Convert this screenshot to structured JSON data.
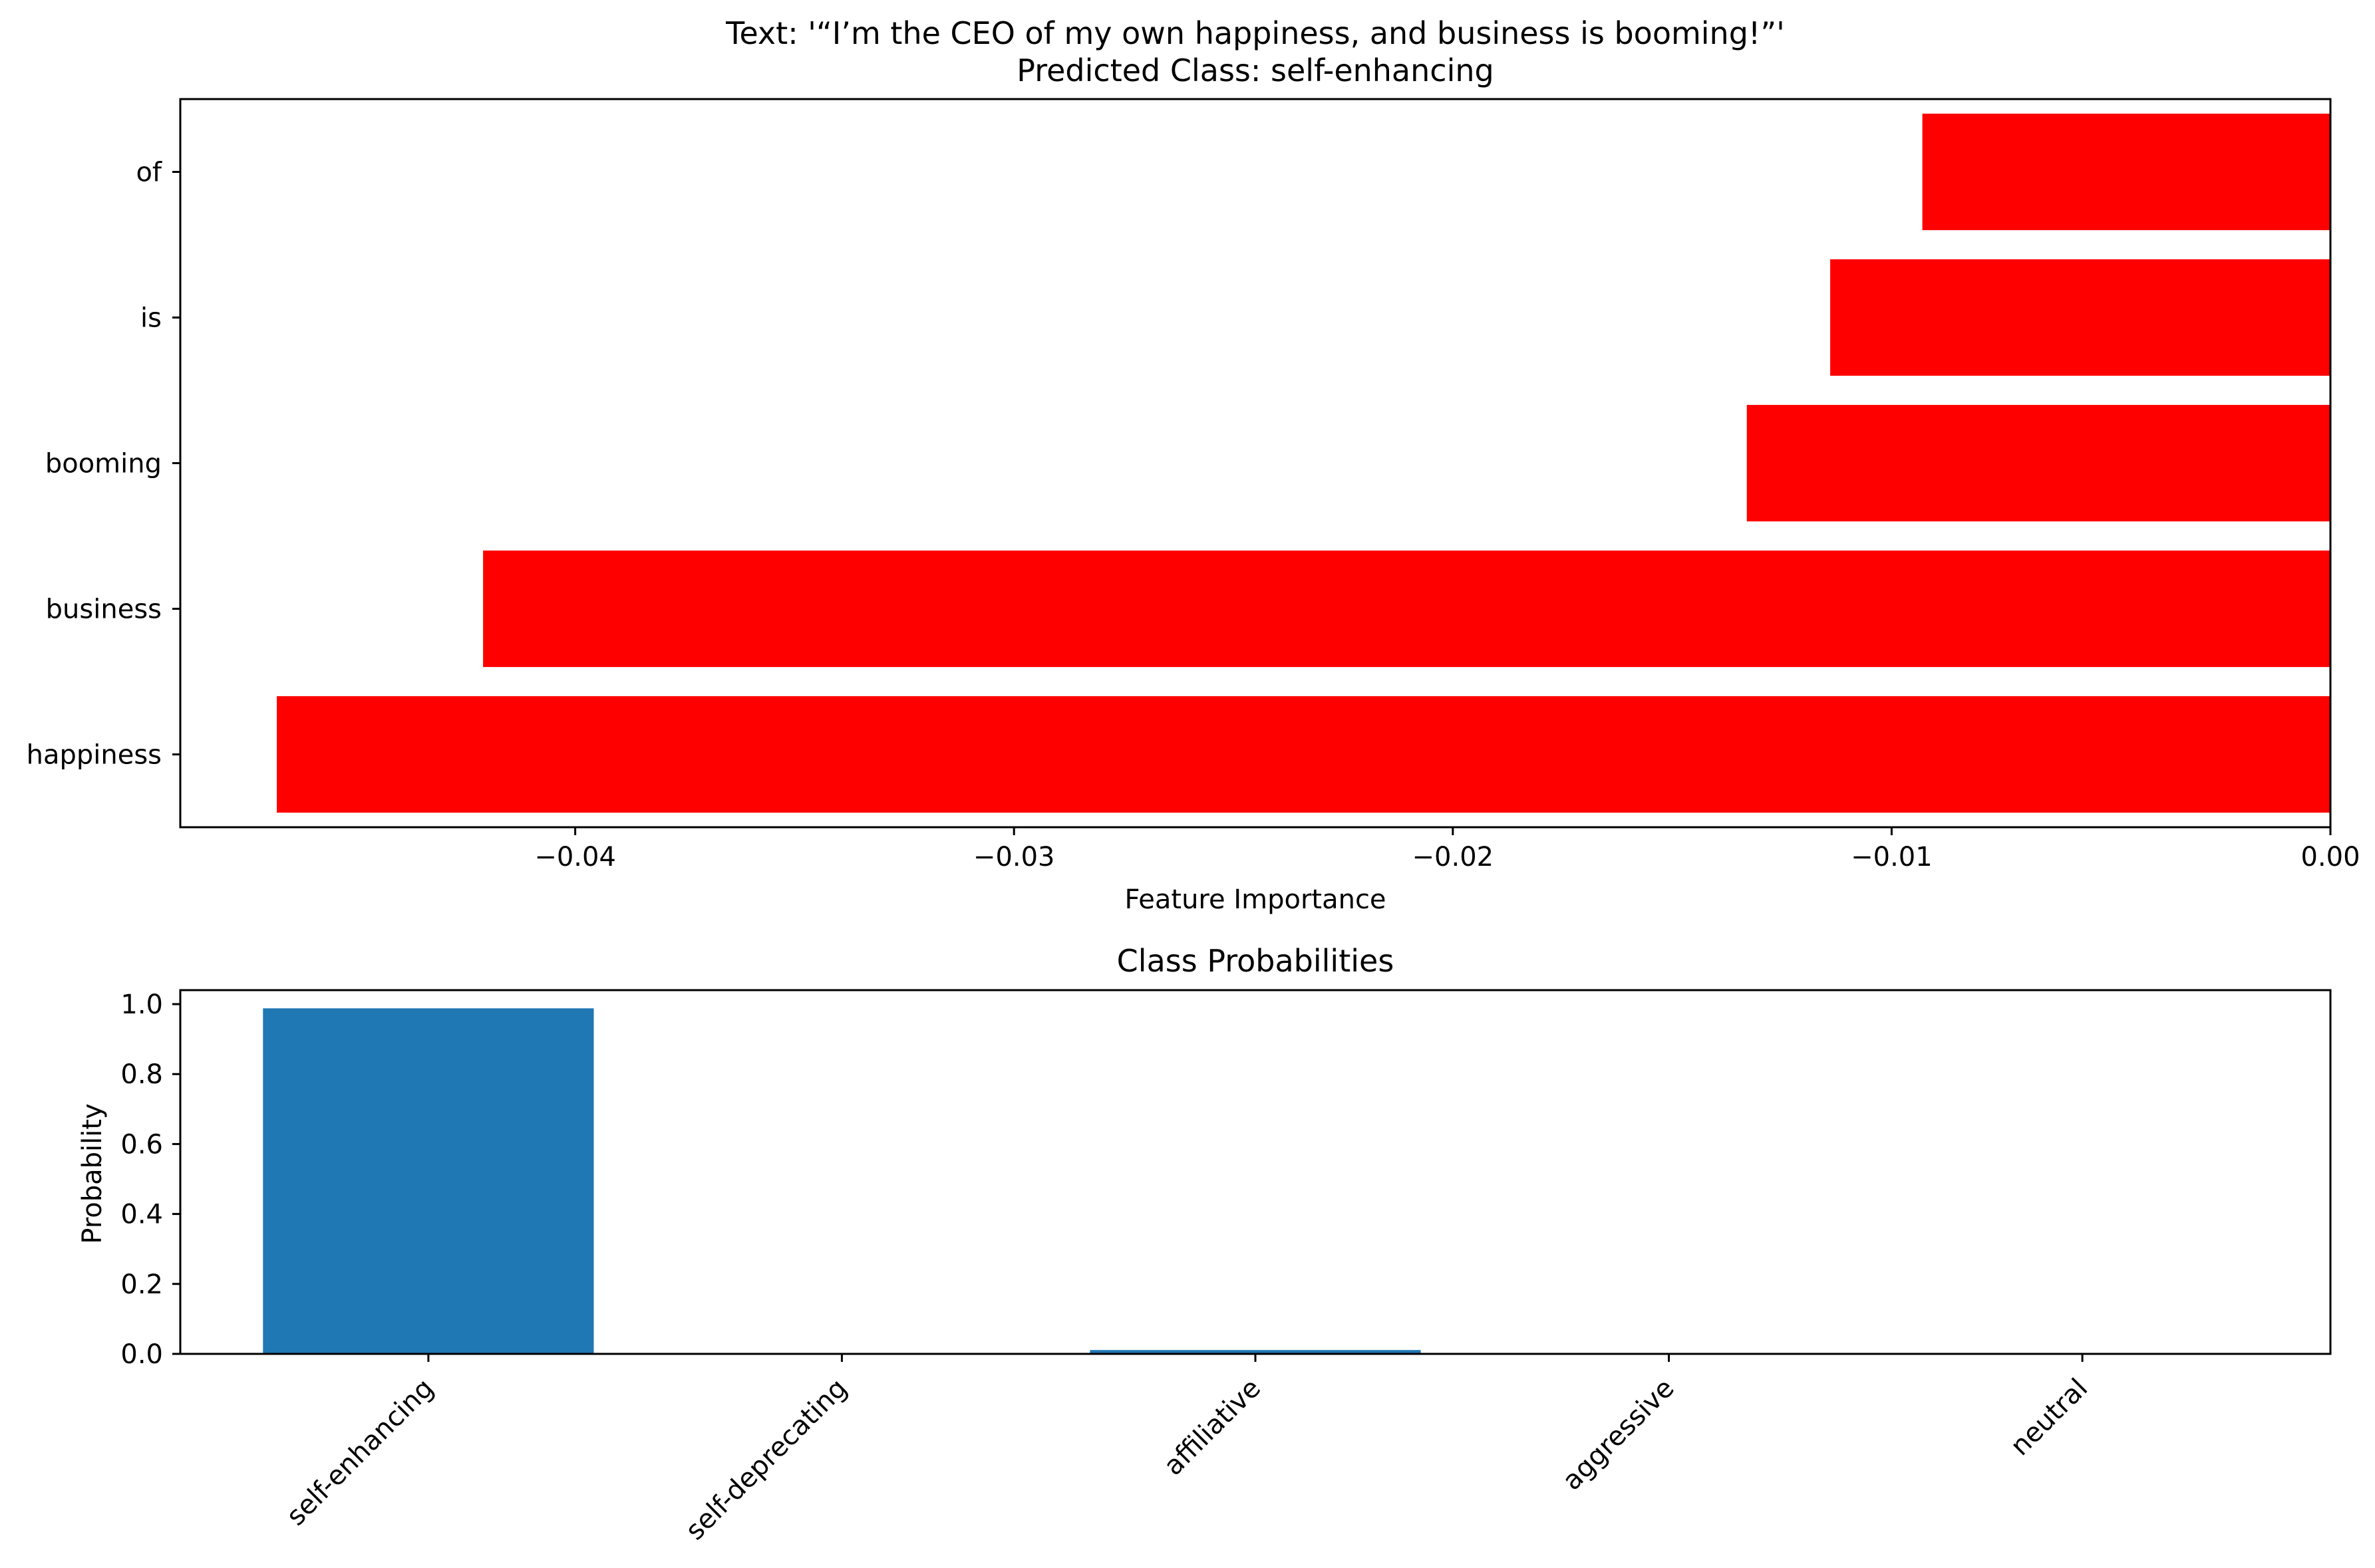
{
  "chart_data": [
    {
      "type": "bar",
      "orientation": "horizontal",
      "title_line1": "Text: '“I’m the CEO of my own happiness, and business is booming!”'",
      "title_line2": "Predicted Class: self-enhancing",
      "xlabel": "Feature Importance",
      "ylabel": "",
      "categories": [
        "of",
        "is",
        "booming",
        "business",
        "happiness"
      ],
      "values": [
        -0.0093,
        -0.0114,
        -0.0133,
        -0.0421,
        -0.0468
      ],
      "xlim": [
        -0.049,
        0.0
      ],
      "xticks": [
        -0.04,
        -0.03,
        -0.02,
        -0.01,
        0.0
      ],
      "xtick_labels": [
        "−0.04",
        "−0.03",
        "−0.02",
        "−0.01",
        "0.00"
      ],
      "bar_color": "#ff0000",
      "grid": false
    },
    {
      "type": "bar",
      "title": "Class Probabilities",
      "xlabel": "",
      "ylabel": "Probability",
      "categories": [
        "self-enhancing",
        "self-deprecating",
        "affiliative",
        "aggressive",
        "neutral"
      ],
      "values": [
        0.988,
        0.001,
        0.011,
        0.0005,
        0.0005
      ],
      "ylim": [
        0.0,
        1.04
      ],
      "yticks": [
        0.0,
        0.2,
        0.4,
        0.6,
        0.8,
        1.0
      ],
      "ytick_labels": [
        "0.0",
        "0.2",
        "0.4",
        "0.6",
        "0.8",
        "1.0"
      ],
      "bar_color": "#1f77b4",
      "grid": false
    }
  ]
}
